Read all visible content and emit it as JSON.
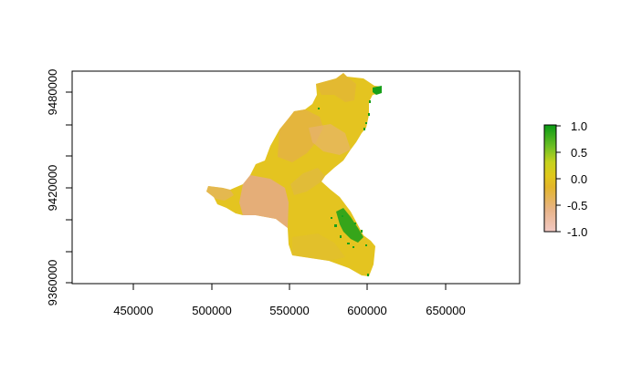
{
  "map": {
    "type": "raster",
    "x_ticks": [
      "450000",
      "500000",
      "550000",
      "600000",
      "650000"
    ],
    "y_ticks": [
      "9360000",
      "9420000",
      "9480000"
    ],
    "legend": {
      "ticks": [
        "1.0",
        "0.5",
        "0.0",
        "-0.5",
        "-1.0"
      ],
      "range": [
        -1.0,
        1.0
      ],
      "colors": [
        "#f2c9c4",
        "#e8b48a",
        "#e5c21f",
        "#d8d31a",
        "#9ed12a",
        "#4fb52a",
        "#0a9a14"
      ]
    },
    "region_colors": {
      "base": "#e4c420",
      "warm": "#e3b04a",
      "pink": "#e6b08a",
      "green": "#1a9c1c"
    }
  }
}
